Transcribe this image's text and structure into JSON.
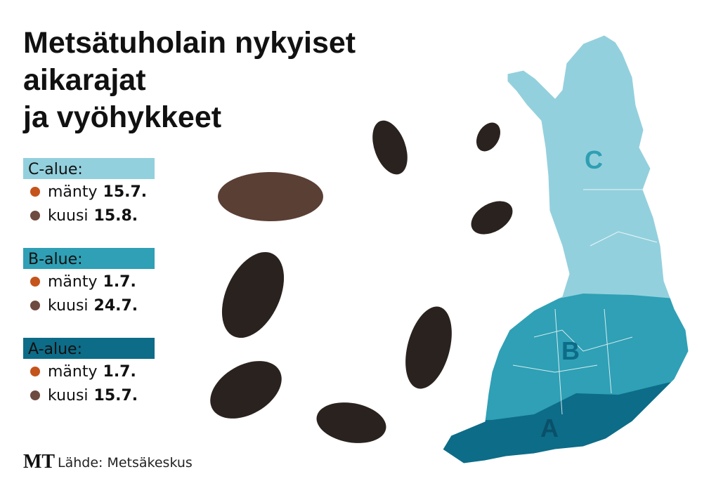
{
  "title": [
    "Metsätuholain nykyiset",
    "aikarajat",
    "ja vyöhykkeet"
  ],
  "zones": [
    {
      "name": "C-alue:",
      "color": "#93d0dd",
      "items": [
        {
          "tree": "mänty",
          "date": "15.7."
        },
        {
          "tree": "kuusi",
          "date": "15.8."
        }
      ]
    },
    {
      "name": "B-alue:",
      "color": "#2fa0b5",
      "items": [
        {
          "tree": "mänty",
          "date": "1.7."
        },
        {
          "tree": "kuusi",
          "date": "24.7."
        }
      ]
    },
    {
      "name": "A-alue:",
      "color": "#0d6c88",
      "items": [
        {
          "tree": "mänty",
          "date": "1.7."
        },
        {
          "tree": "kuusi",
          "date": "15.7."
        }
      ]
    }
  ],
  "tree_colors": {
    "mänty": "#c4541c",
    "kuusi": "#6e4b40"
  },
  "map_labels": [
    "C",
    "B",
    "A"
  ],
  "footer": {
    "logo": "MT",
    "source": "Lähde: Metsäkeskus"
  }
}
